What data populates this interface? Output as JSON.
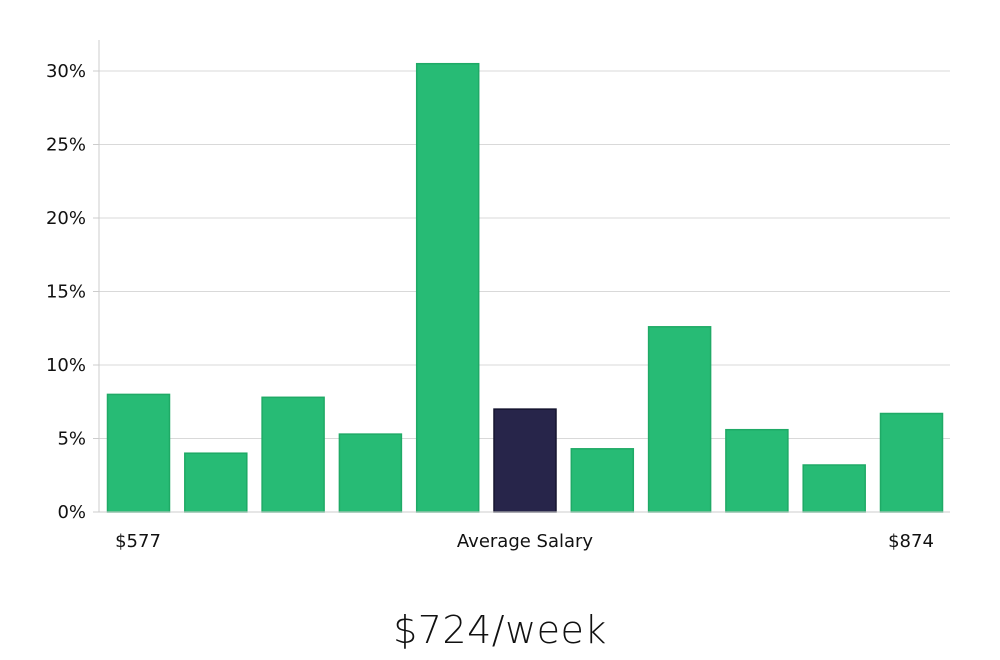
{
  "chart_data": {
    "type": "bar",
    "title": "",
    "xlabel": "Average Salary",
    "ylabel": "",
    "x_left_label": "$577",
    "x_right_label": "$874",
    "ylim": [
      0,
      32
    ],
    "yticks": [
      0,
      5,
      10,
      15,
      20,
      25,
      30
    ],
    "ytick_labels": [
      "0%",
      "5%",
      "10%",
      "15%",
      "20%",
      "25%",
      "30%"
    ],
    "values": [
      8.0,
      4.0,
      7.8,
      5.3,
      30.5,
      7.0,
      4.3,
      12.6,
      5.6,
      3.2,
      6.7
    ],
    "highlight_index": 5,
    "grid": true,
    "colors": {
      "bar": "#27bb75",
      "bar_edge": "#1faa66",
      "highlight": "#27254a",
      "highlight_edge": "#15142e"
    }
  },
  "summary": {
    "salary": "$724/week"
  }
}
